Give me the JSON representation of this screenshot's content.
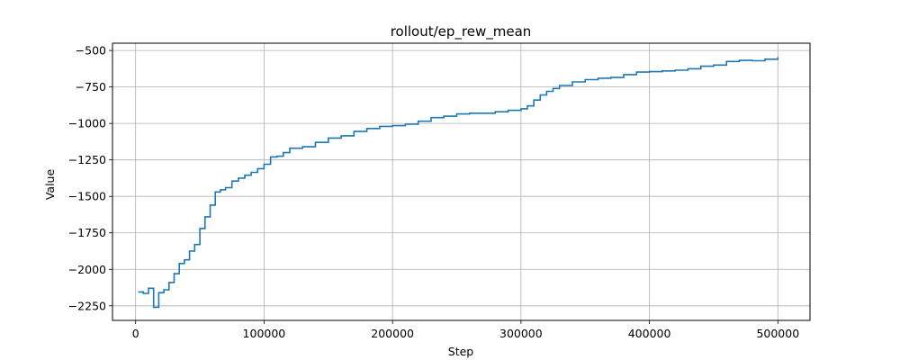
{
  "chart_data": {
    "type": "line",
    "title": "rollout/ep_rew_mean",
    "xlabel": "Step",
    "ylabel": "Value",
    "xlim": [
      -18000,
      525000
    ],
    "ylim": [
      -2350,
      -450
    ],
    "x_ticks": [
      0,
      100000,
      200000,
      300000,
      400000,
      500000
    ],
    "x_tick_labels": [
      "0",
      "100000",
      "200000",
      "300000",
      "400000",
      "500000"
    ],
    "y_ticks": [
      -2250,
      -2000,
      -1750,
      -1500,
      -1250,
      -1000,
      -750,
      -500
    ],
    "y_tick_labels": [
      "−2250",
      "−2000",
      "−1750",
      "−1500",
      "−1250",
      "−1000",
      "−750",
      "−500"
    ],
    "grid": true,
    "step": true,
    "color": "#1f77b4",
    "series": [
      {
        "x": [
          2000,
          6000,
          10000,
          14000,
          18000,
          22000,
          26000,
          30000,
          34000,
          38000,
          42000,
          46000,
          50000,
          54000,
          58000,
          62000,
          66000,
          70000,
          75000,
          80000,
          85000,
          90000,
          95000,
          100000,
          105000,
          110000,
          115000,
          120000,
          130000,
          140000,
          150000,
          160000,
          170000,
          180000,
          190000,
          200000,
          210000,
          220000,
          230000,
          240000,
          250000,
          260000,
          270000,
          280000,
          290000,
          300000,
          305000,
          310000,
          315000,
          320000,
          325000,
          330000,
          340000,
          350000,
          360000,
          370000,
          380000,
          390000,
          400000,
          410000,
          420000,
          430000,
          440000,
          450000,
          460000,
          470000,
          480000,
          490000,
          500000
        ],
        "y": [
          -2155,
          -2165,
          -2130,
          -2260,
          -2160,
          -2140,
          -2090,
          -2030,
          -1960,
          -1935,
          -1875,
          -1830,
          -1720,
          -1640,
          -1560,
          -1470,
          -1455,
          -1440,
          -1395,
          -1375,
          -1355,
          -1335,
          -1310,
          -1280,
          -1230,
          -1225,
          -1200,
          -1170,
          -1160,
          -1130,
          -1100,
          -1085,
          -1055,
          -1035,
          -1020,
          -1015,
          -1005,
          -985,
          -960,
          -950,
          -935,
          -930,
          -930,
          -920,
          -910,
          -900,
          -880,
          -840,
          -805,
          -780,
          -760,
          -740,
          -715,
          -700,
          -690,
          -685,
          -665,
          -648,
          -645,
          -640,
          -635,
          -625,
          -608,
          -600,
          -575,
          -568,
          -570,
          -560,
          -545
        ]
      }
    ]
  }
}
